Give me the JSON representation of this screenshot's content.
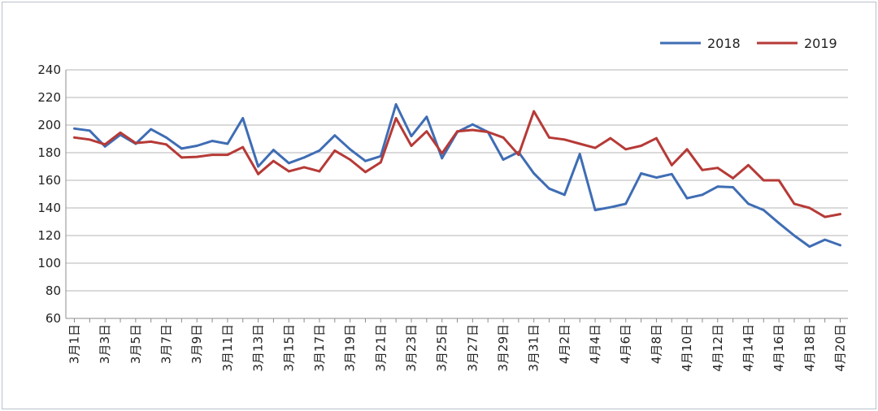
{
  "chart_data": {
    "type": "line",
    "title": "",
    "xlabel": "",
    "ylabel": "",
    "ylim": [
      60,
      240
    ],
    "yticks": [
      60,
      80,
      100,
      120,
      140,
      160,
      180,
      200,
      220,
      240
    ],
    "grid": true,
    "legend_position": "top-right",
    "x": [
      "3月1日",
      "3月2日",
      "3月3日",
      "3月4日",
      "3月5日",
      "3月6日",
      "3月7日",
      "3月8日",
      "3月9日",
      "3月10日",
      "3月11日",
      "3月12日",
      "3月13日",
      "3月14日",
      "3月15日",
      "3月16日",
      "3月17日",
      "3月18日",
      "3月19日",
      "3月20日",
      "3月21日",
      "3月22日",
      "3月23日",
      "3月24日",
      "3月25日",
      "3月26日",
      "3月27日",
      "3月28日",
      "3月29日",
      "3月30日",
      "3月31日",
      "4月1日",
      "4月2日",
      "4月3日",
      "4月4日",
      "4月5日",
      "4月6日",
      "4月7日",
      "4月8日",
      "4月9日",
      "4月10日",
      "4月11日",
      "4月12日",
      "4月13日",
      "4月14日",
      "4月15日",
      "4月16日",
      "4月17日",
      "4月18日",
      "4月19日",
      "4月20日"
    ],
    "xtick_labels": [
      "3月1日",
      "3月3日",
      "3月5日",
      "3月7日",
      "3月9日",
      "3月11日",
      "3月13日",
      "3月15日",
      "3月17日",
      "3月19日",
      "3月21日",
      "3月23日",
      "3月25日",
      "3月27日",
      "3月29日",
      "3月31日",
      "4月2日",
      "4月4日",
      "4月6日",
      "4月8日",
      "4月10日",
      "4月12日",
      "4月14日",
      "4月16日",
      "4月18日",
      "4月20日"
    ],
    "series": [
      {
        "name": "2018",
        "color": "#3f6db4",
        "values": [
          197.5,
          196,
          184.5,
          193,
          186.5,
          197,
          191,
          183,
          185,
          188.5,
          186.5,
          205,
          170,
          182,
          172.5,
          176.5,
          181.5,
          192.5,
          182.5,
          174,
          177.5,
          215,
          192,
          206,
          176,
          195,
          200.5,
          195,
          175,
          180.5,
          165,
          154,
          149.5,
          179,
          138.5,
          140.5,
          143,
          165,
          162,
          164.5,
          147,
          149.5,
          155.5,
          155,
          143,
          138.5,
          129,
          120,
          112,
          117,
          113
        ]
      },
      {
        "name": "2019",
        "color": "#b63a37",
        "values": [
          191,
          189.5,
          186,
          194.5,
          187,
          188,
          186,
          176.5,
          177,
          178.5,
          178.5,
          184,
          164.5,
          174,
          166.5,
          169.5,
          166.5,
          181.5,
          175,
          166,
          173,
          205,
          185,
          195.5,
          179.5,
          195.5,
          196.5,
          195,
          191,
          178.5,
          210,
          191,
          189.5,
          186.5,
          183.5,
          190.5,
          182.5,
          185,
          190.5,
          171,
          182.5,
          167.5,
          169,
          161.5,
          171,
          160,
          160,
          143,
          140,
          133.5,
          135.5
        ]
      }
    ]
  }
}
